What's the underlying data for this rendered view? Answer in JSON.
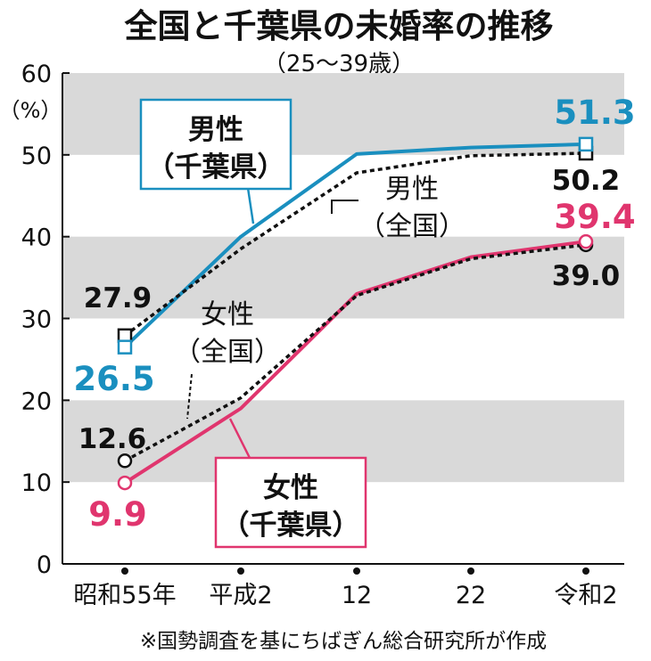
{
  "title": "全国と千葉県の未婚率の推移",
  "subtitle": "（25～39歳）",
  "unit_label": "（%）",
  "note": "※国勢調査を基にちばぎん総合研究所が作成",
  "colors": {
    "male_chiba": "#1a8fbf",
    "female_chiba": "#e0356e",
    "national": "#111111",
    "band": "#d9d9d9"
  },
  "chart_data": {
    "type": "line",
    "title": "全国と千葉県の未婚率の推移",
    "subtitle": "（25～39歳）",
    "xlabel": "",
    "ylabel": "（%）",
    "categories": [
      "昭和55年",
      "平成2",
      "12",
      "22",
      "令和2"
    ],
    "ylim": [
      0,
      60
    ],
    "yticks": [
      0,
      10,
      20,
      30,
      40,
      50,
      60
    ],
    "grid": "alternating horizontal bands",
    "series": [
      {
        "key": "male_chiba",
        "name_lines": [
          "男性",
          "（千葉県）"
        ],
        "style": "solid",
        "marker": "square",
        "values": [
          26.5,
          40.0,
          50.1,
          50.9,
          51.3
        ]
      },
      {
        "key": "male_national",
        "name_lines": [
          "男性",
          "（全国）"
        ],
        "style": "dotted",
        "marker": "square",
        "values": [
          27.9,
          38.5,
          47.8,
          49.9,
          50.2
        ]
      },
      {
        "key": "female_chiba",
        "name_lines": [
          "女性",
          "（千葉県）"
        ],
        "style": "solid",
        "marker": "circle",
        "values": [
          9.9,
          19.0,
          33.0,
          37.5,
          39.4
        ]
      },
      {
        "key": "female_national",
        "name_lines": [
          "女性",
          "（全国）"
        ],
        "style": "dotted",
        "marker": "circle",
        "values": [
          12.6,
          20.3,
          32.8,
          37.3,
          39.0
        ]
      }
    ],
    "data_labels": {
      "male_chiba_start": "26.5",
      "male_chiba_end": "51.3",
      "male_national_start": "27.9",
      "male_national_end": "50.2",
      "female_chiba_start": "9.9",
      "female_chiba_end": "39.4",
      "female_national_start": "12.6",
      "female_national_end": "39.0"
    }
  }
}
